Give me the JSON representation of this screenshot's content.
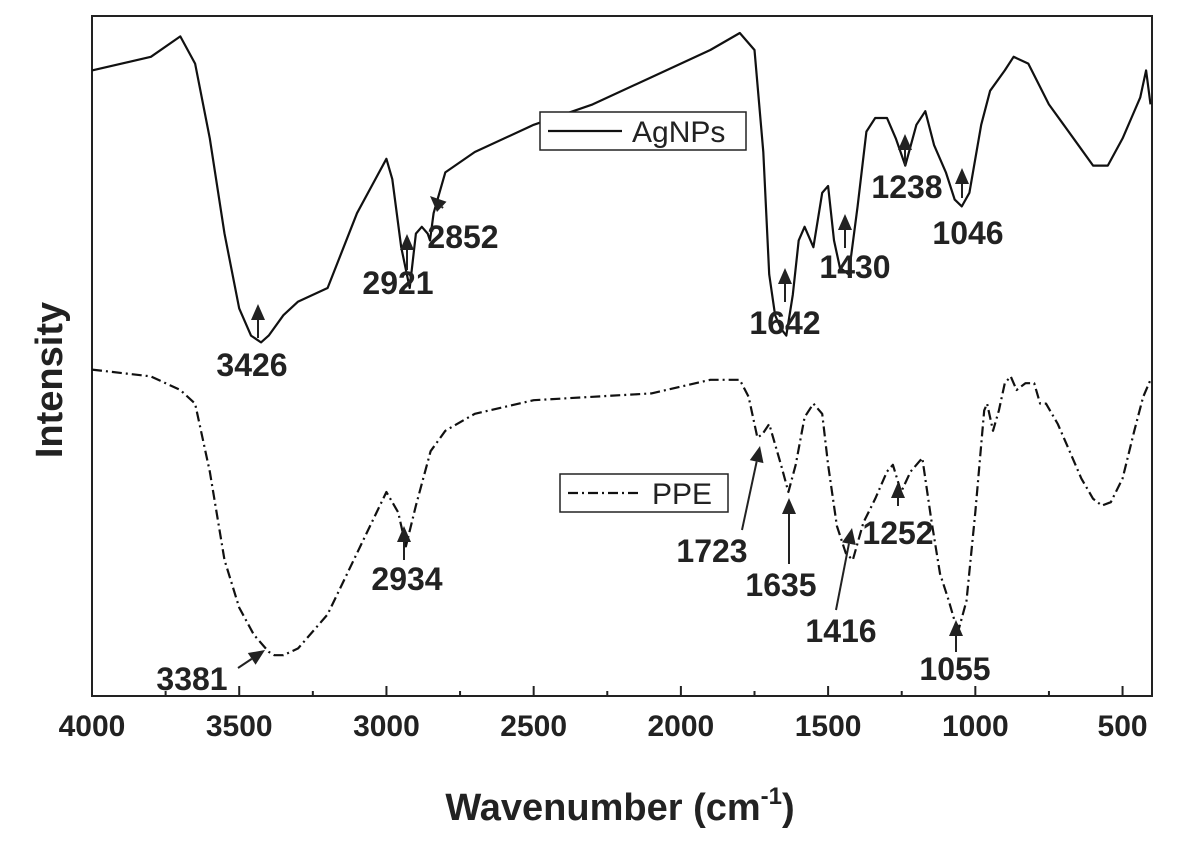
{
  "chart_data": {
    "type": "line",
    "xlabel": "Wavenumber (cm",
    "xlabel_sup": "-1",
    "xlabel_close": ")",
    "ylabel": "Intensity",
    "xlim": [
      4000,
      400
    ],
    "x_reversed": true,
    "y_ticks_shown": false,
    "grid": false,
    "x_ticks": [
      4000,
      3500,
      3000,
      2500,
      2000,
      1500,
      1000,
      500
    ],
    "x_tick_labels": [
      "4000",
      "3500",
      "3000",
      "2500",
      "2000",
      "1500",
      "1000",
      "500"
    ],
    "ylim": [
      0,
      100
    ],
    "series": [
      {
        "name": "AgNPs",
        "style": "solid",
        "color": "#111111",
        "x": [
          4000,
          3800,
          3700,
          3650,
          3600,
          3550,
          3500,
          3460,
          3426,
          3400,
          3350,
          3300,
          3200,
          3100,
          3050,
          3000,
          2980,
          2950,
          2921,
          2900,
          2880,
          2860,
          2852,
          2840,
          2800,
          2700,
          2500,
          2300,
          2100,
          1900,
          1800,
          1750,
          1720,
          1700,
          1680,
          1660,
          1642,
          1620,
          1600,
          1580,
          1550,
          1520,
          1500,
          1480,
          1460,
          1430,
          1400,
          1370,
          1340,
          1300,
          1270,
          1238,
          1200,
          1170,
          1140,
          1100,
          1070,
          1046,
          1020,
          980,
          950,
          900,
          870,
          820,
          750,
          700,
          650,
          600,
          550,
          500,
          470,
          440,
          420,
          405
        ],
        "y": [
          92,
          94,
          97,
          93,
          82,
          68,
          57,
          53,
          52,
          53,
          56,
          58,
          60,
          71,
          75,
          79,
          76,
          66,
          60,
          68,
          69,
          68,
          67,
          71,
          77,
          80,
          84,
          87,
          91,
          95,
          97.5,
          95,
          80,
          62,
          56,
          54,
          53,
          59,
          67,
          69,
          66,
          74,
          75,
          67,
          63,
          62,
          72,
          83,
          85,
          85,
          82,
          78,
          84,
          86,
          81,
          77,
          73,
          72,
          74,
          84,
          89,
          92,
          94,
          93,
          87,
          84,
          81,
          78,
          78,
          82,
          85,
          88,
          92,
          87
        ]
      },
      {
        "name": "PPE",
        "style": "dash-dot",
        "color": "#111111",
        "x": [
          4000,
          3800,
          3700,
          3650,
          3600,
          3550,
          3500,
          3450,
          3400,
          3381,
          3350,
          3300,
          3200,
          3100,
          3000,
          2960,
          2934,
          2900,
          2850,
          2800,
          2700,
          2500,
          2300,
          2100,
          1900,
          1800,
          1770,
          1740,
          1723,
          1700,
          1680,
          1660,
          1635,
          1610,
          1580,
          1550,
          1520,
          1500,
          1470,
          1440,
          1416,
          1380,
          1340,
          1300,
          1280,
          1252,
          1220,
          1180,
          1150,
          1120,
          1090,
          1070,
          1055,
          1030,
          1000,
          970,
          960,
          940,
          920,
          900,
          880,
          860,
          830,
          800,
          780,
          760,
          720,
          680,
          640,
          600,
          570,
          540,
          500,
          460,
          430,
          405
        ],
        "y": [
          48,
          47,
          45,
          43,
          33,
          20,
          13,
          9,
          6.5,
          6,
          6,
          7,
          12,
          21,
          30,
          27,
          22,
          28,
          36,
          39,
          41.5,
          43.5,
          44,
          44.5,
          46.5,
          46.5,
          44,
          38,
          38.5,
          40,
          37,
          34,
          30,
          34,
          41,
          43,
          41.5,
          34,
          25,
          21,
          20,
          25.5,
          29,
          33,
          34,
          30,
          33,
          35,
          26,
          18,
          14,
          11,
          10,
          14,
          27,
          42,
          43,
          39,
          42,
          46,
          47,
          45,
          46,
          46,
          43,
          43,
          40,
          36,
          32,
          29,
          28,
          28.5,
          32,
          39,
          44,
          46.5
        ]
      }
    ],
    "legend": [
      {
        "label": "AgNPs",
        "style": "solid",
        "position": "upper-center-right"
      },
      {
        "label": "PPE",
        "style": "dash-dot",
        "position": "middle-center-right"
      }
    ],
    "annotations": [
      {
        "label": "3426",
        "series": "AgNPs",
        "x": 3426
      },
      {
        "label": "2921",
        "series": "AgNPs",
        "x": 2921
      },
      {
        "label": "2852",
        "series": "AgNPs",
        "x": 2852
      },
      {
        "label": "1642",
        "series": "AgNPs",
        "x": 1642
      },
      {
        "label": "1430",
        "series": "AgNPs",
        "x": 1430
      },
      {
        "label": "1238",
        "series": "AgNPs",
        "x": 1238
      },
      {
        "label": "1046",
        "series": "AgNPs",
        "x": 1046
      },
      {
        "label": "3381",
        "series": "PPE",
        "x": 3381
      },
      {
        "label": "2934",
        "series": "PPE",
        "x": 2934
      },
      {
        "label": "1723",
        "series": "PPE",
        "x": 1723
      },
      {
        "label": "1635",
        "series": "PPE",
        "x": 1635
      },
      {
        "label": "1416",
        "series": "PPE",
        "x": 1416
      },
      {
        "label": "1252",
        "series": "PPE",
        "x": 1252
      },
      {
        "label": "1055",
        "series": "PPE",
        "x": 1055
      }
    ]
  }
}
